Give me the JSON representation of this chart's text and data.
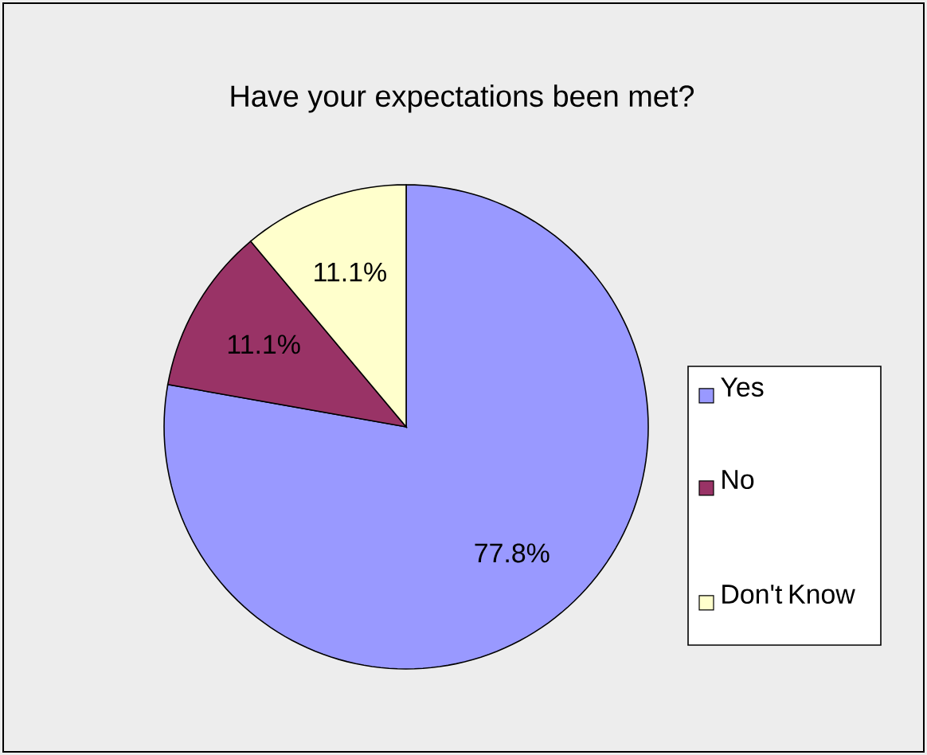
{
  "chart_data": {
    "type": "pie",
    "title": "Have your expectations been met?",
    "categories": [
      "Yes",
      "No",
      "Don't Know"
    ],
    "values": [
      77.8,
      11.1,
      11.1
    ],
    "colors": [
      "#9999ff",
      "#993366",
      "#ffffcc"
    ],
    "value_labels": [
      "77.8%",
      "11.1%",
      "11.1%"
    ],
    "legend": "right"
  }
}
